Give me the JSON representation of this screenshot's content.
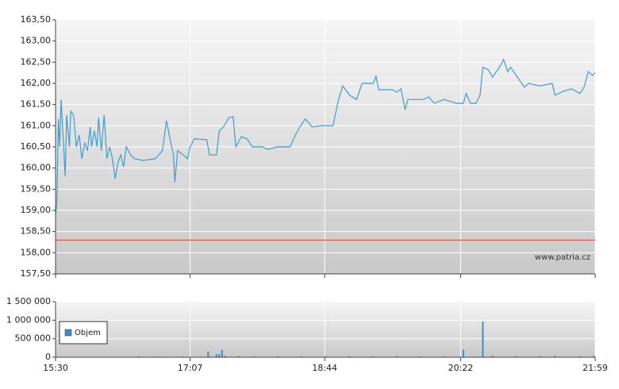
{
  "chart_data": [
    {
      "type": "line",
      "color": "#3f9fcc",
      "x": [
        930,
        931,
        932,
        933,
        934,
        936,
        937,
        938,
        940,
        941,
        943,
        945,
        947,
        949,
        951,
        953,
        955,
        956,
        958,
        960,
        961,
        963,
        965,
        967,
        969,
        971,
        973,
        975,
        977,
        979,
        981,
        984,
        987,
        993,
        1002,
        1007,
        1010,
        1013,
        1015,
        1016,
        1018,
        1022,
        1025,
        1027,
        1030,
        1039,
        1041,
        1046,
        1048,
        1051,
        1055,
        1058,
        1060,
        1064,
        1068,
        1072,
        1079,
        1083,
        1090,
        1099,
        1103,
        1106,
        1110,
        1115,
        1122,
        1130,
        1134,
        1137,
        1142,
        1147,
        1151,
        1159,
        1161,
        1163,
        1173,
        1176,
        1179,
        1182,
        1184,
        1195,
        1199,
        1203,
        1210,
        1215,
        1219,
        1224,
        1226,
        1229,
        1233,
        1236,
        1238,
        1242,
        1245,
        1250,
        1253,
        1256,
        1258,
        1262,
        1268,
        1271,
        1279,
        1288,
        1290,
        1296,
        1302,
        1308,
        1311,
        1314,
        1317,
        1319
      ],
      "values": [
        158.9,
        159.19,
        161.16,
        160.5,
        161.62,
        160.41,
        159.81,
        161.25,
        160.5,
        161.34,
        161.25,
        160.5,
        160.78,
        160.22,
        160.6,
        160.41,
        160.97,
        160.5,
        160.88,
        160.5,
        161.19,
        160.41,
        161.25,
        160.22,
        160.5,
        160.22,
        159.75,
        160.13,
        160.31,
        160.03,
        160.5,
        160.31,
        160.22,
        160.18,
        160.22,
        160.41,
        161.12,
        160.6,
        160.31,
        159.66,
        160.41,
        160.31,
        160.22,
        160.5,
        160.69,
        160.67,
        160.31,
        160.31,
        160.88,
        160.97,
        161.19,
        161.21,
        160.5,
        160.74,
        160.69,
        160.5,
        160.5,
        160.44,
        160.5,
        160.5,
        160.78,
        160.97,
        161.16,
        160.97,
        161.0,
        161.0,
        161.62,
        161.94,
        161.72,
        161.62,
        162.0,
        162.0,
        162.17,
        161.85,
        161.85,
        161.79,
        161.87,
        161.38,
        161.62,
        161.62,
        161.68,
        161.53,
        161.62,
        161.57,
        161.53,
        161.53,
        161.76,
        161.53,
        161.53,
        161.72,
        162.38,
        162.32,
        162.15,
        162.38,
        162.56,
        162.28,
        162.38,
        162.19,
        161.91,
        162.0,
        161.94,
        162.0,
        161.72,
        161.81,
        161.87,
        161.76,
        161.91,
        162.28,
        162.19,
        162.25
      ],
      "xlim": [
        930,
        1319
      ],
      "xticks": [
        930,
        1027,
        1124,
        1222,
        1319
      ],
      "ylim": [
        157.5,
        163.5
      ],
      "yticks": [
        {
          "value": 157.5,
          "label": "157,50"
        },
        {
          "value": 158,
          "label": "158,00"
        },
        {
          "value": 158.5,
          "label": "158,50"
        },
        {
          "value": 159,
          "label": "159,00"
        },
        {
          "value": 159.5,
          "label": "159,50"
        },
        {
          "value": 160,
          "label": "160,00"
        },
        {
          "value": 160.5,
          "label": "160,50"
        },
        {
          "value": 161,
          "label": "161,00"
        },
        {
          "value": 161.5,
          "label": "161,50"
        },
        {
          "value": 162,
          "label": "162,00"
        },
        {
          "value": 162.5,
          "label": "162,50"
        },
        {
          "value": 163,
          "label": "163,00"
        },
        {
          "value": 163.5,
          "label": "163,50"
        }
      ],
      "reference_line": 158.3,
      "reference_color": "#d04a3a",
      "grid": true,
      "watermark": "www.patria.cz"
    },
    {
      "type": "bar",
      "x": [
        990,
        1004,
        1022,
        1040,
        1046,
        1048,
        1050,
        1052,
        1062,
        1073,
        1090,
        1107,
        1125,
        1142,
        1159,
        1176,
        1193,
        1210,
        1224,
        1238,
        1245,
        1262,
        1279,
        1290,
        1308,
        1318
      ],
      "series": [
        {
          "name": "Objem",
          "color": "#3d8fc6",
          "values": [
            20000,
            15000,
            20000,
            150000,
            80000,
            90000,
            200000,
            40000,
            30000,
            25000,
            20000,
            20000,
            30000,
            25000,
            20000,
            30000,
            20000,
            25000,
            200000,
            960000,
            40000,
            30000,
            30000,
            35000,
            30000,
            40000
          ]
        }
      ],
      "xlim": [
        930,
        1319
      ],
      "xticks": [
        {
          "value": 930,
          "label": "15:30"
        },
        {
          "value": 1027,
          "label": "17:07"
        },
        {
          "value": 1124,
          "label": "18:44"
        },
        {
          "value": 1222,
          "label": "20:22"
        },
        {
          "value": 1319,
          "label": "21:59"
        }
      ],
      "ylim": [
        0,
        1500000
      ],
      "yticks": [
        0,
        {
          "value": 500000,
          "label": "500 000"
        },
        {
          "value": 1000000,
          "label": "1 000 000"
        },
        {
          "value": 1500000,
          "label": "1 500 000"
        }
      ],
      "grid": true,
      "legend": "upper left"
    }
  ]
}
